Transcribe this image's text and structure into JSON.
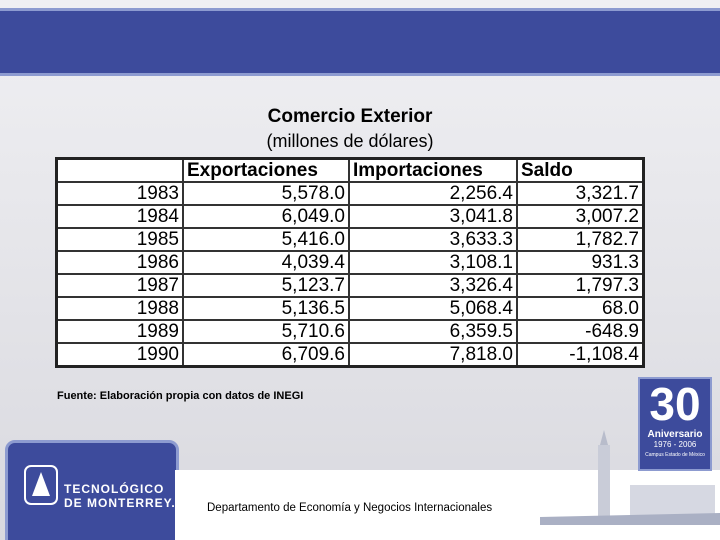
{
  "title": "Comercio Exterior",
  "subtitle": "(millones de dólares)",
  "table": {
    "header": [
      "",
      "Exportaciones",
      "Importaciones",
      "Saldo"
    ],
    "rows": [
      [
        "1983",
        "5,578.0",
        "2,256.4",
        "3,321.7"
      ],
      [
        "1984",
        "6,049.0",
        "3,041.8",
        "3,007.2"
      ],
      [
        "1985",
        "5,416.0",
        "3,633.3",
        "1,782.7"
      ],
      [
        "1986",
        "4,039.4",
        "3,108.1",
        "931.3"
      ],
      [
        "1987",
        "5,123.7",
        "3,326.4",
        "1,797.3"
      ],
      [
        "1988",
        "5,136.5",
        "5,068.4",
        "68.0"
      ],
      [
        "1989",
        "5,710.6",
        "6,359.5",
        "-648.9"
      ],
      [
        "1990",
        "6,709.6",
        "7,818.0",
        "-1,108.4"
      ]
    ]
  },
  "source": "Fuente: Elaboración propia con datos de INEGI",
  "footer": {
    "logo_line1": "TECNOLÓGICO",
    "logo_line2": "DE MONTERREY.",
    "department": "Departamento de Economía y Negocios Internacionales",
    "badge_number": "30",
    "badge_label": "Aniversario",
    "badge_years": "1976 - 2006",
    "badge_campus": "Campus Estado de México"
  }
}
